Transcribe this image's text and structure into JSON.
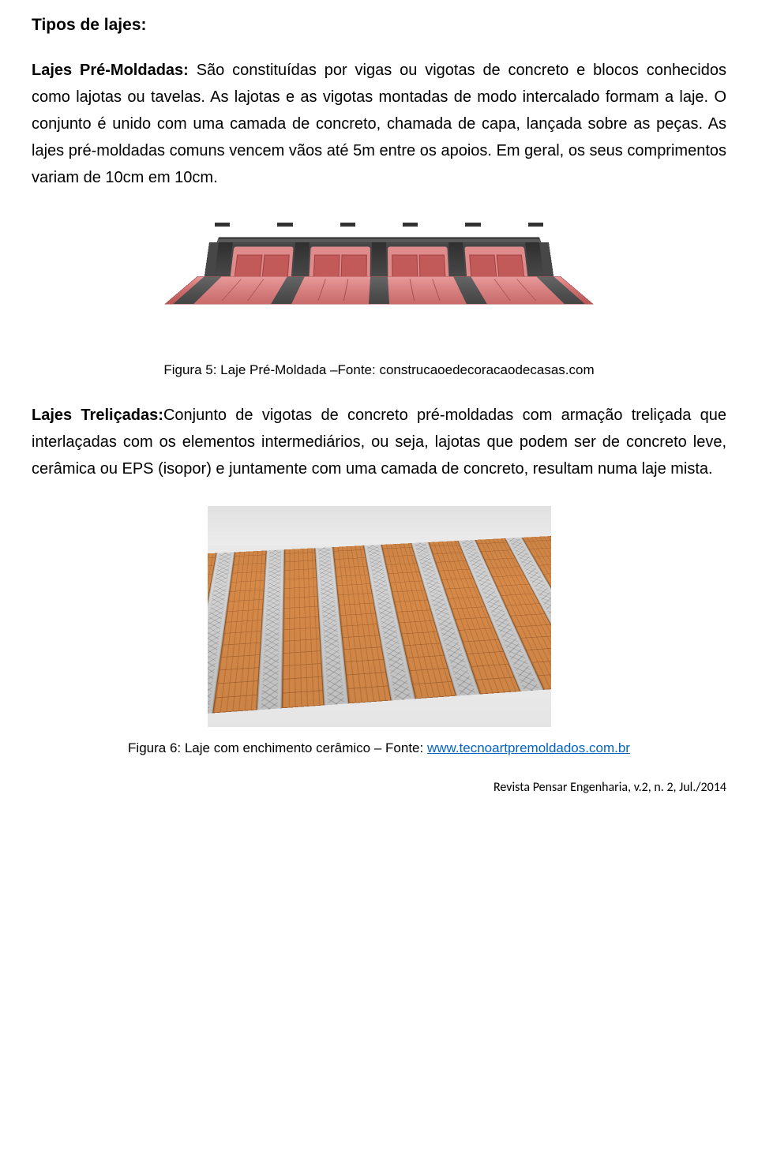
{
  "section_title": "Tipos de lajes:",
  "para1": {
    "label": "Lajes Pré-Moldadas:",
    "text": " São constituídas por vigas ou vigotas de concreto e blocos conhecidos como lajotas ou tavelas. As lajotas e as vigotas montadas de modo intercalado formam a laje. O conjunto é unido com uma camada de concreto, chamada de capa, lançada sobre as peças. As lajes pré-moldadas comuns vencem vãos até 5m entre os apoios. Em geral, os seus comprimentos variam de 10cm em 10cm."
  },
  "fig1_caption": "Figura 5: Laje Pré-Moldada –Fonte: construcaoedecoracaodecasas.com",
  "para2": {
    "label": "Lajes Treliçadas:",
    "text": "Conjunto de vigotas de concreto pré-moldadas com armação treliçada que interlaçadas com os elementos intermediários, ou seja, lajotas que podem ser de concreto leve, cerâmica ou EPS (isopor) e juntamente com uma camada de concreto, resultam numa laje mista."
  },
  "fig2_caption_prefix": "Figura 6: Laje com enchimento cerâmico – Fonte: ",
  "fig2_caption_link": "www.tecnoartpremoldados.com.br",
  "footer": "Revista Pensar Engenharia, v.2, n. 2, Jul./2014"
}
